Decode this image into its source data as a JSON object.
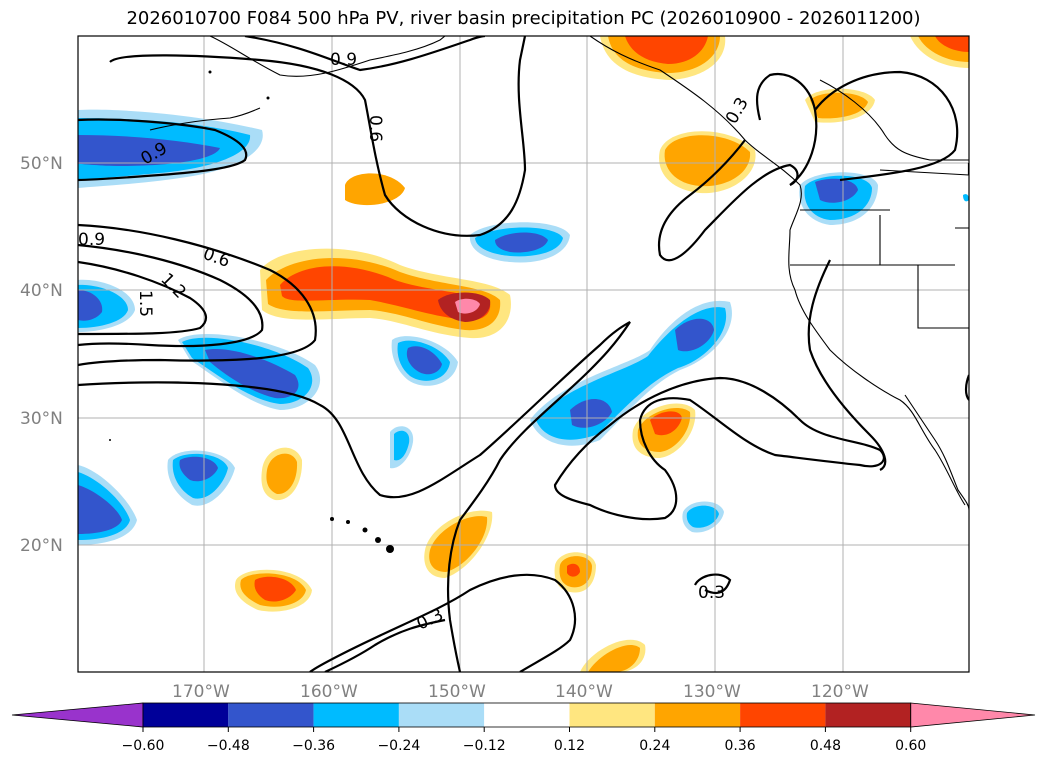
{
  "title": "2026010700 F084 500 hPa PV, river basin precipitation PC (2026010900 - 2026011200)",
  "lat_labels": [
    "50°N",
    "40°N",
    "30°N",
    "20°N"
  ],
  "lon_labels": [
    "170°W",
    "160°W",
    "150°W",
    "140°W",
    "130°W",
    "120°W"
  ],
  "contour_labels": [
    "0.9",
    "0.6",
    "0.3",
    "0.9",
    "0.9",
    "0.6",
    "1.2",
    "1.5",
    "0.3",
    "0.3"
  ],
  "colorbar": {
    "ticks": [
      "−0.60",
      "−0.48",
      "−0.36",
      "−0.24",
      "−0.12",
      "0.12",
      "0.24",
      "0.36",
      "0.48",
      "0.60"
    ],
    "colors": [
      "#9933cc",
      "#000099",
      "#3355cc",
      "#00bbff",
      "#aaddf7",
      "#ffffff",
      "#ffe680",
      "#ffa500",
      "#ff4500",
      "#b22222",
      "#ff88aa"
    ]
  },
  "colors": {
    "neg_light": "#aaddf7",
    "neg_mid": "#00bbff",
    "neg_dark": "#3355cc",
    "pos_light": "#ffe680",
    "pos_mid": "#ffa500",
    "pos_dark": "#ff4500",
    "pos_darker": "#b22222",
    "pos_max": "#ff88aa"
  }
}
